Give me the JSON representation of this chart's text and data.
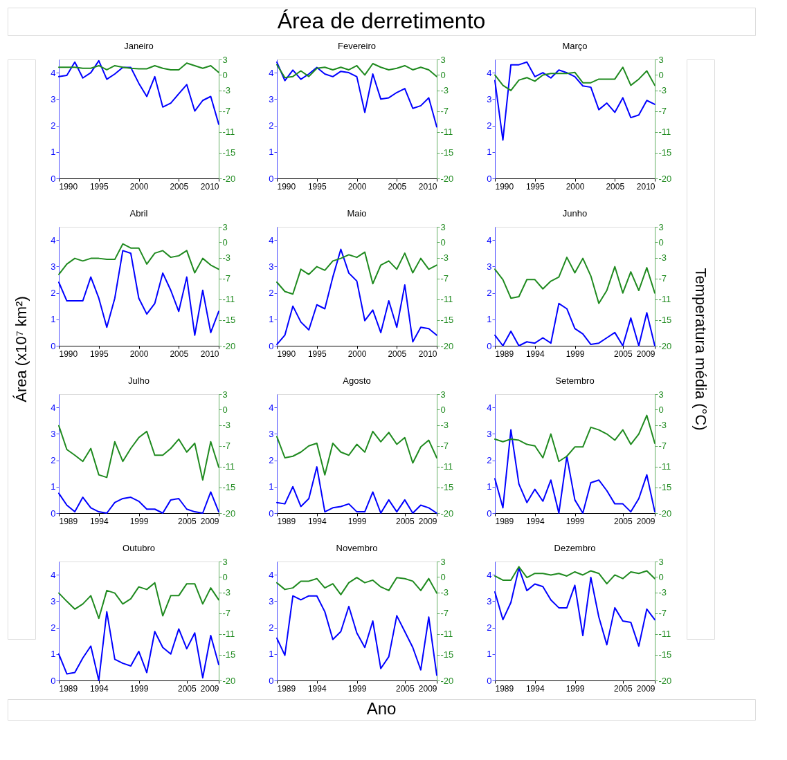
{
  "chart_data": [
    {
      "type": "line",
      "title": "Janeiro",
      "x": [
        1990,
        1991,
        1992,
        1993,
        1994,
        1995,
        1996,
        1997,
        1998,
        1999,
        2000,
        2001,
        2002,
        2003,
        2004,
        2005,
        2006,
        2007,
        2008,
        2009,
        2010
      ],
      "xlim": [
        1990,
        2010
      ],
      "xticks": [
        1990,
        1995,
        2000,
        2005,
        2010
      ],
      "ylim": [
        0,
        4.5
      ],
      "yticks": [
        0,
        1,
        2,
        3,
        4
      ],
      "y2lim": [
        -20,
        3
      ],
      "y2ticks": [
        3,
        0,
        -3,
        -7,
        -11,
        -15,
        -20
      ],
      "series": [
        {
          "color": "#0000ff",
          "values": [
            3.85,
            3.9,
            4.4,
            3.8,
            4.0,
            4.45,
            3.75,
            3.95,
            4.2,
            4.2,
            3.6,
            3.1,
            3.85,
            2.7,
            2.85,
            3.2,
            3.55,
            2.55,
            2.95,
            3.1,
            2.05
          ]
        },
        {
          "color": "#1f8a1f",
          "axis": "y2",
          "values": [
            1.5,
            1.5,
            1.5,
            1.3,
            1.3,
            1.8,
            1.0,
            1.8,
            1.5,
            1.3,
            1.2,
            1.2,
            1.8,
            1.3,
            1.0,
            1.0,
            2.3,
            1.8,
            1.3,
            1.8,
            0.5
          ]
        }
      ]
    },
    {
      "type": "line",
      "title": "Fevereiro",
      "x": [
        1990,
        1991,
        1992,
        1993,
        1994,
        1995,
        1996,
        1997,
        1998,
        1999,
        2000,
        2001,
        2002,
        2003,
        2004,
        2005,
        2006,
        2007,
        2008,
        2009,
        2010
      ],
      "xlim": [
        1990,
        2010
      ],
      "xticks": [
        1990,
        1995,
        2000,
        2005,
        2010
      ],
      "ylim": [
        0,
        4.5
      ],
      "yticks": [
        0,
        1,
        2,
        3,
        4
      ],
      "y2lim": [
        -20,
        3
      ],
      "y2ticks": [
        3,
        0,
        -3,
        -7,
        -11,
        -15,
        -20
      ],
      "series": [
        {
          "color": "#0000ff",
          "values": [
            4.4,
            3.7,
            4.1,
            3.75,
            3.95,
            4.2,
            3.95,
            3.85,
            4.05,
            4.0,
            3.85,
            2.5,
            3.95,
            3.0,
            3.05,
            3.25,
            3.4,
            2.65,
            2.75,
            3.05,
            1.95
          ]
        },
        {
          "color": "#1f8a1f",
          "axis": "y2",
          "values": [
            2.0,
            -0.5,
            -0.3,
            0.8,
            -0.3,
            1.3,
            1.5,
            1.0,
            1.5,
            1.0,
            1.8,
            0.0,
            2.2,
            1.5,
            1.0,
            1.3,
            1.8,
            1.0,
            1.5,
            1.0,
            -0.3
          ]
        }
      ]
    },
    {
      "type": "line",
      "title": "Março",
      "x": [
        1990,
        1991,
        1992,
        1993,
        1994,
        1995,
        1996,
        1997,
        1998,
        1999,
        2000,
        2001,
        2002,
        2003,
        2004,
        2005,
        2006,
        2007,
        2008,
        2009,
        2010
      ],
      "xlim": [
        1990,
        2010
      ],
      "xticks": [
        1990,
        1995,
        2000,
        2005,
        2010
      ],
      "ylim": [
        0,
        4.5
      ],
      "yticks": [
        0,
        1,
        2,
        3,
        4
      ],
      "y2lim": [
        -20,
        3
      ],
      "y2ticks": [
        3,
        0,
        -3,
        -7,
        -11,
        -15,
        -20
      ],
      "series": [
        {
          "color": "#0000ff",
          "values": [
            3.7,
            1.45,
            4.3,
            4.3,
            4.4,
            3.85,
            4.0,
            3.8,
            4.1,
            4.0,
            3.85,
            3.5,
            3.45,
            2.6,
            2.85,
            2.5,
            3.05,
            2.3,
            2.4,
            2.95,
            2.8
          ]
        },
        {
          "color": "#1f8a1f",
          "axis": "y2",
          "values": [
            0.0,
            -2.0,
            -3.0,
            -1.0,
            -0.5,
            -1.2,
            0.0,
            0.3,
            0.3,
            0.3,
            0.5,
            -1.5,
            -1.5,
            -0.8,
            -0.8,
            -0.8,
            1.5,
            -2.0,
            -0.8,
            0.8,
            -2.0
          ]
        }
      ]
    },
    {
      "type": "line",
      "title": "Abril",
      "x": [
        1990,
        1991,
        1992,
        1993,
        1994,
        1995,
        1996,
        1997,
        1998,
        1999,
        2000,
        2001,
        2002,
        2003,
        2004,
        2005,
        2006,
        2007,
        2008,
        2009,
        2010
      ],
      "xlim": [
        1990,
        2010
      ],
      "xticks": [
        1990,
        1995,
        2000,
        2005,
        2010
      ],
      "ylim": [
        0,
        4.5
      ],
      "yticks": [
        0,
        1,
        2,
        3,
        4
      ],
      "y2lim": [
        -20,
        3
      ],
      "y2ticks": [
        3,
        0,
        -3,
        -7,
        -11,
        -15,
        -20
      ],
      "series": [
        {
          "color": "#0000ff",
          "values": [
            2.4,
            1.7,
            1.7,
            1.7,
            2.6,
            1.8,
            0.7,
            1.8,
            3.6,
            3.5,
            1.8,
            1.2,
            1.6,
            2.75,
            2.1,
            1.3,
            2.6,
            0.4,
            2.1,
            0.5,
            1.3
          ]
        },
        {
          "color": "#1f8a1f",
          "axis": "y2",
          "values": [
            -6.2,
            -4.2,
            -3.1,
            -3.6,
            -3.1,
            -3.1,
            -3.3,
            -3.3,
            -0.3,
            -1.1,
            -1.1,
            -4.2,
            -2.1,
            -1.6,
            -2.9,
            -2.6,
            -1.6,
            -5.9,
            -3.1,
            -4.4,
            -5.2
          ]
        }
      ]
    },
    {
      "type": "line",
      "title": "Maio",
      "x": [
        1990,
        1991,
        1992,
        1993,
        1994,
        1995,
        1996,
        1997,
        1998,
        1999,
        2000,
        2001,
        2002,
        2003,
        2004,
        2005,
        2006,
        2007,
        2008,
        2009,
        2010
      ],
      "xlim": [
        1990,
        2010
      ],
      "xticks": [
        1990,
        1995,
        2000,
        2005,
        2010
      ],
      "ylim": [
        0,
        4.5
      ],
      "yticks": [
        0,
        1,
        2,
        3,
        4
      ],
      "y2lim": [
        -20,
        3
      ],
      "y2ticks": [
        3,
        0,
        -3,
        -7,
        -11,
        -15,
        -20
      ],
      "series": [
        {
          "color": "#0000ff",
          "values": [
            0.05,
            0.4,
            1.5,
            0.9,
            0.6,
            1.55,
            1.4,
            2.6,
            3.65,
            2.75,
            2.45,
            0.95,
            1.35,
            0.5,
            1.7,
            0.7,
            2.3,
            0.15,
            0.7,
            0.65,
            0.4
          ]
        },
        {
          "color": "#1f8a1f",
          "axis": "y2",
          "values": [
            -7.7,
            -9.5,
            -10.0,
            -5.2,
            -6.2,
            -4.7,
            -5.4,
            -3.6,
            -3.1,
            -2.4,
            -2.9,
            -1.9,
            -8.0,
            -4.4,
            -3.6,
            -5.2,
            -2.1,
            -5.9,
            -3.1,
            -5.2,
            -4.4
          ]
        }
      ]
    },
    {
      "type": "line",
      "title": "Junho",
      "x": [
        1989,
        1990,
        1991,
        1992,
        1993,
        1994,
        1995,
        1996,
        1997,
        1998,
        1999,
        2000,
        2001,
        2002,
        2003,
        2004,
        2005,
        2006,
        2007,
        2008,
        2009
      ],
      "xlim": [
        1989,
        2009
      ],
      "xticks": [
        1989,
        1994,
        1999,
        2005,
        2009
      ],
      "ylim": [
        0,
        4.5
      ],
      "yticks": [
        0,
        1,
        2,
        3,
        4
      ],
      "y2lim": [
        -20,
        3
      ],
      "y2ticks": [
        3,
        0,
        -3,
        -7,
        -11,
        -15,
        -20
      ],
      "series": [
        {
          "color": "#0000ff",
          "values": [
            0.4,
            0.0,
            0.55,
            0.0,
            0.15,
            0.1,
            0.3,
            0.1,
            1.6,
            1.4,
            0.65,
            0.45,
            0.05,
            0.1,
            0.3,
            0.5,
            0.0,
            1.05,
            0.0,
            1.25,
            0.0
          ]
        },
        {
          "color": "#1f8a1f",
          "axis": "y2",
          "values": [
            -5.2,
            -7.2,
            -10.8,
            -10.5,
            -7.2,
            -7.2,
            -9.0,
            -7.5,
            -6.7,
            -2.9,
            -5.9,
            -3.1,
            -6.5,
            -11.8,
            -9.3,
            -4.7,
            -9.8,
            -5.7,
            -9.3,
            -4.9,
            -9.8
          ]
        }
      ]
    },
    {
      "type": "line",
      "title": "Julho",
      "x": [
        1989,
        1990,
        1991,
        1992,
        1993,
        1994,
        1995,
        1996,
        1997,
        1998,
        1999,
        2000,
        2001,
        2002,
        2003,
        2004,
        2005,
        2006,
        2007,
        2008,
        2009
      ],
      "xlim": [
        1989,
        2009
      ],
      "xticks": [
        1989,
        1994,
        1999,
        2005,
        2009
      ],
      "ylim": [
        0,
        4.5
      ],
      "yticks": [
        0,
        1,
        2,
        3,
        4
      ],
      "y2lim": [
        -20,
        3
      ],
      "y2ticks": [
        3,
        0,
        -3,
        -7,
        -11,
        -15,
        -20
      ],
      "series": [
        {
          "color": "#0000ff",
          "values": [
            0.75,
            0.3,
            0.05,
            0.6,
            0.2,
            0.05,
            0.0,
            0.4,
            0.55,
            0.6,
            0.45,
            0.15,
            0.15,
            0.0,
            0.5,
            0.55,
            0.15,
            0.05,
            0.0,
            0.8,
            0.05
          ]
        },
        {
          "color": "#1f8a1f",
          "axis": "y2",
          "values": [
            -3.1,
            -7.7,
            -8.8,
            -10.0,
            -7.5,
            -12.6,
            -13.1,
            -6.2,
            -10.0,
            -7.5,
            -5.4,
            -4.2,
            -8.8,
            -8.8,
            -7.5,
            -5.7,
            -8.2,
            -6.5,
            -13.6,
            -6.2,
            -11.1
          ]
        }
      ]
    },
    {
      "type": "line",
      "title": "Agosto",
      "x": [
        1989,
        1990,
        1991,
        1992,
        1993,
        1994,
        1995,
        1996,
        1997,
        1998,
        1999,
        2000,
        2001,
        2002,
        2003,
        2004,
        2005,
        2006,
        2007,
        2008,
        2009
      ],
      "xlim": [
        1989,
        2009
      ],
      "xticks": [
        1989,
        1994,
        1999,
        2005,
        2009
      ],
      "ylim": [
        0,
        4.5
      ],
      "yticks": [
        0,
        1,
        2,
        3,
        4
      ],
      "y2lim": [
        -20,
        3
      ],
      "y2ticks": [
        3,
        0,
        -3,
        -7,
        -11,
        -15,
        -20
      ],
      "series": [
        {
          "color": "#0000ff",
          "values": [
            0.4,
            0.35,
            1.0,
            0.25,
            0.55,
            1.75,
            0.05,
            0.2,
            0.25,
            0.35,
            0.05,
            0.05,
            0.8,
            0.0,
            0.5,
            0.05,
            0.5,
            0.0,
            0.3,
            0.2,
            0.0
          ]
        },
        {
          "color": "#1f8a1f",
          "axis": "y2",
          "values": [
            -5.2,
            -9.3,
            -9.0,
            -8.2,
            -7.0,
            -6.5,
            -12.6,
            -6.5,
            -8.2,
            -8.8,
            -6.7,
            -8.2,
            -4.2,
            -6.2,
            -4.4,
            -6.7,
            -5.4,
            -10.3,
            -7.2,
            -5.9,
            -9.3
          ]
        }
      ]
    },
    {
      "type": "line",
      "title": "Setembro",
      "x": [
        1989,
        1990,
        1991,
        1992,
        1993,
        1994,
        1995,
        1996,
        1997,
        1998,
        1999,
        2000,
        2001,
        2002,
        2003,
        2004,
        2005,
        2006,
        2007,
        2008,
        2009
      ],
      "xlim": [
        1989,
        2009
      ],
      "xticks": [
        1989,
        1994,
        1999,
        2005,
        2009
      ],
      "ylim": [
        0,
        4.5
      ],
      "yticks": [
        0,
        1,
        2,
        3,
        4
      ],
      "y2lim": [
        -20,
        3
      ],
      "y2ticks": [
        3,
        0,
        -3,
        -7,
        -11,
        -15,
        -20
      ],
      "series": [
        {
          "color": "#0000ff",
          "values": [
            1.3,
            0.2,
            3.15,
            1.1,
            0.4,
            0.9,
            0.45,
            1.25,
            0.0,
            2.15,
            0.5,
            0.0,
            1.15,
            1.25,
            0.85,
            0.35,
            0.35,
            0.05,
            0.55,
            1.45,
            0.05
          ]
        },
        {
          "color": "#1f8a1f",
          "axis": "y2",
          "values": [
            -5.7,
            -6.2,
            -5.7,
            -5.9,
            -6.7,
            -7.0,
            -9.3,
            -4.7,
            -10.0,
            -9.0,
            -7.2,
            -7.2,
            -3.4,
            -3.9,
            -4.7,
            -5.9,
            -3.9,
            -6.7,
            -4.7,
            -1.1,
            -6.5
          ]
        }
      ]
    },
    {
      "type": "line",
      "title": "Outubro",
      "x": [
        1989,
        1990,
        1991,
        1992,
        1993,
        1994,
        1995,
        1996,
        1997,
        1998,
        1999,
        2000,
        2001,
        2002,
        2003,
        2004,
        2005,
        2006,
        2007,
        2008,
        2009
      ],
      "xlim": [
        1989,
        2009
      ],
      "xticks": [
        1989,
        1994,
        1999,
        2005,
        2009
      ],
      "ylim": [
        0,
        4.5
      ],
      "yticks": [
        0,
        1,
        2,
        3,
        4
      ],
      "y2lim": [
        -20,
        3
      ],
      "y2ticks": [
        3,
        0,
        -3,
        -7,
        -11,
        -15,
        -20
      ],
      "series": [
        {
          "color": "#0000ff",
          "values": [
            1.0,
            0.25,
            0.3,
            0.85,
            1.3,
            0.0,
            2.6,
            0.8,
            0.65,
            0.55,
            1.1,
            0.3,
            1.85,
            1.25,
            1.0,
            1.95,
            1.2,
            1.8,
            0.1,
            1.7,
            0.6
          ]
        },
        {
          "color": "#1f8a1f",
          "axis": "y2",
          "values": [
            -3.1,
            -4.7,
            -6.2,
            -5.2,
            -3.6,
            -8.0,
            -2.6,
            -3.1,
            -5.2,
            -4.2,
            -1.9,
            -2.4,
            -1.1,
            -7.5,
            -3.6,
            -3.6,
            -1.3,
            -1.3,
            -5.2,
            -2.1,
            -4.4
          ]
        }
      ]
    },
    {
      "type": "line",
      "title": "Novembro",
      "x": [
        1989,
        1990,
        1991,
        1992,
        1993,
        1994,
        1995,
        1996,
        1997,
        1998,
        1999,
        2000,
        2001,
        2002,
        2003,
        2004,
        2005,
        2006,
        2007,
        2008,
        2009
      ],
      "xlim": [
        1989,
        2009
      ],
      "xticks": [
        1989,
        1994,
        1999,
        2005,
        2009
      ],
      "ylim": [
        0,
        4.5
      ],
      "yticks": [
        0,
        1,
        2,
        3,
        4
      ],
      "y2lim": [
        -20,
        3
      ],
      "y2ticks": [
        3,
        0,
        -3,
        -7,
        -11,
        -15,
        -20
      ],
      "series": [
        {
          "color": "#0000ff",
          "values": [
            1.6,
            0.95,
            3.2,
            3.05,
            3.2,
            3.2,
            2.6,
            1.55,
            1.85,
            2.8,
            1.8,
            1.25,
            2.25,
            0.45,
            0.9,
            2.45,
            1.85,
            1.25,
            0.4,
            2.4,
            0.2
          ]
        },
        {
          "color": "#1f8a1f",
          "axis": "y2",
          "values": [
            -1.1,
            -2.4,
            -2.1,
            -0.8,
            -0.8,
            -0.3,
            -2.1,
            -1.3,
            -3.4,
            -1.1,
            -0.1,
            -1.1,
            -0.6,
            -1.9,
            -2.6,
            -0.1,
            -0.3,
            -0.8,
            -2.6,
            -0.3,
            -3.1
          ]
        }
      ]
    },
    {
      "type": "line",
      "title": "Dezembro",
      "x": [
        1989,
        1990,
        1991,
        1992,
        1993,
        1994,
        1995,
        1996,
        1997,
        1998,
        1999,
        2000,
        2001,
        2002,
        2003,
        2004,
        2005,
        2006,
        2007,
        2008,
        2009
      ],
      "xlim": [
        1989,
        2009
      ],
      "xticks": [
        1989,
        1994,
        1999,
        2005,
        2009
      ],
      "ylim": [
        0,
        4.5
      ],
      "yticks": [
        0,
        1,
        2,
        3,
        4
      ],
      "y2lim": [
        -20,
        3
      ],
      "y2ticks": [
        3,
        0,
        -3,
        -7,
        -11,
        -15,
        -20
      ],
      "series": [
        {
          "color": "#0000ff",
          "values": [
            3.35,
            2.3,
            2.95,
            4.25,
            3.4,
            3.65,
            3.55,
            3.05,
            2.75,
            2.75,
            3.6,
            1.7,
            3.9,
            2.4,
            1.35,
            2.75,
            2.25,
            2.2,
            1.3,
            2.7,
            2.3
          ]
        },
        {
          "color": "#1f8a1f",
          "axis": "y2",
          "values": [
            0.2,
            -0.6,
            -0.6,
            2.0,
            -0.1,
            0.7,
            0.7,
            0.4,
            0.7,
            0.2,
            1.0,
            0.4,
            1.2,
            0.7,
            -1.3,
            0.4,
            -0.3,
            1.0,
            0.7,
            1.2,
            -0.3
          ]
        }
      ]
    },
    {
      "type": "other",
      "title": "Área de derretimento",
      "xlabel": "Ano",
      "ylabel": "Área (x10⁷ km²)",
      "y2label": "Temperatura média  (°C)"
    }
  ]
}
